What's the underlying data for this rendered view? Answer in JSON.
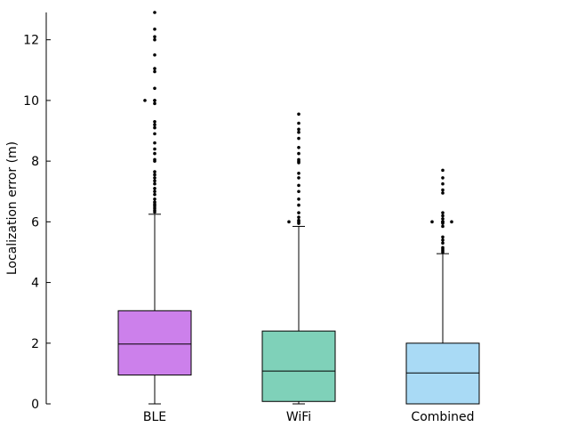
{
  "chart_data": {
    "type": "box",
    "title": "",
    "xlabel": "",
    "ylabel": "Localization error (m)",
    "ylim": [
      0,
      12.9
    ],
    "yticks": [
      0,
      2,
      4,
      6,
      8,
      10,
      12
    ],
    "categories": [
      "BLE",
      "WiFi",
      "Combined"
    ],
    "series": [
      {
        "category": "BLE",
        "color": "#cc80eb",
        "min": 0.0,
        "q1": 0.95,
        "median": 1.97,
        "q3": 3.07,
        "max": 6.25,
        "outliers": [
          6.32,
          6.38,
          6.45,
          6.52,
          6.58,
          6.65,
          6.75,
          6.9,
          7.0,
          7.1,
          7.25,
          7.35,
          7.45,
          7.55,
          7.65,
          8.0,
          8.05,
          8.25,
          8.4,
          8.6,
          8.9,
          9.1,
          9.2,
          9.3,
          9.9,
          10.0,
          10.0,
          10.4,
          10.95,
          11.05,
          11.5,
          12.0,
          12.1,
          12.35,
          12.9
        ]
      },
      {
        "category": "WiFi",
        "color": "#7fd1b9",
        "min": 0.0,
        "q1": 0.08,
        "median": 1.08,
        "q3": 2.4,
        "max": 5.85,
        "outliers": [
          5.95,
          6.0,
          6.05,
          6.15,
          6.3,
          6.55,
          6.75,
          7.0,
          7.2,
          7.45,
          7.6,
          7.95,
          8.0,
          8.05,
          8.25,
          8.45,
          8.75,
          8.95,
          9.05,
          9.25,
          9.55
        ]
      },
      {
        "category": "Combined",
        "color": "#a9daf5",
        "min": 0.0,
        "q1": 0.0,
        "median": 1.02,
        "q3": 2.0,
        "max": 4.95,
        "outliers": [
          5.0,
          5.05,
          5.1,
          5.15,
          5.3,
          5.4,
          5.5,
          5.85,
          5.95,
          6.0,
          6.0,
          6.0,
          6.1,
          6.2,
          6.3,
          6.95,
          7.05,
          7.25,
          7.45,
          7.7
        ]
      }
    ]
  }
}
